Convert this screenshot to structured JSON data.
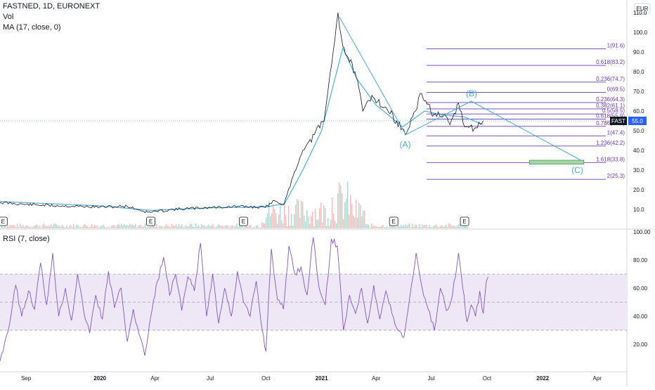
{
  "header": {
    "symbol_line": "FASTNED, 1D, EURONEXT",
    "indicator_vol": "Vol",
    "indicator_ma": "MA (17, close, 0)",
    "currency": "EUR",
    "rsi_label": "RSI (7, close)"
  },
  "price_tag": {
    "ticker": "FAST",
    "value": "55.0"
  },
  "colors": {
    "price_line": "#131722",
    "ma_line": "#4fb0d8",
    "fib_line": "#673ab7",
    "wave_line": "#4fa9d8",
    "rsi_line": "#7e57c2",
    "rsi_band": "#ede7f6",
    "target_box": "#a5d6a7",
    "vol_up": "#8fd1c2",
    "vol_down": "#f4a6a6",
    "price_tag_bg": "#2962ff"
  },
  "chart_data": [
    {
      "type": "line",
      "title": "FASTNED, 1D, EURONEXT",
      "yscale": "linear",
      "ylim": [
        0,
        110
      ],
      "y_ticks": [
        "10.0",
        "20.0",
        "30.0",
        "40.0",
        "50.0",
        "60.0",
        "70.0",
        "80.0",
        "90.0",
        "100.0",
        "110.0"
      ],
      "x_ticks": [
        "Sep",
        "2020",
        "Apr",
        "Jul",
        "Oct",
        "2021",
        "Apr",
        "Jul",
        "Oct",
        "2022",
        "Apr"
      ],
      "series": [
        {
          "role": "price",
          "points": [
            [
              "2019-07-20",
              13.5
            ],
            [
              "2019-09-01",
              12.5
            ],
            [
              "2019-11-01",
              11.8
            ],
            [
              "2020-01-01",
              11.2
            ],
            [
              "2020-02-15",
              11.6
            ],
            [
              "2020-03-20",
              8.5
            ],
            [
              "2020-05-01",
              10.0
            ],
            [
              "2020-07-01",
              11.0
            ],
            [
              "2020-08-15",
              11.5
            ],
            [
              "2020-09-30",
              11.0
            ],
            [
              "2020-10-15",
              14.5
            ],
            [
              "2020-10-31",
              12.5
            ],
            [
              "2020-11-15",
              27.0
            ],
            [
              "2020-12-01",
              40.0
            ],
            [
              "2020-12-20",
              48.0
            ],
            [
              "2021-01-05",
              55.0
            ],
            [
              "2021-01-20",
              90.0
            ],
            [
              "2021-01-28",
              110.0
            ],
            [
              "2021-02-05",
              93.0
            ],
            [
              "2021-02-25",
              80.0
            ],
            [
              "2021-03-10",
              60.0
            ],
            [
              "2021-03-25",
              68.0
            ],
            [
              "2021-04-15",
              62.0
            ],
            [
              "2021-05-05",
              55.0
            ],
            [
              "2021-05-19",
              48.0
            ],
            [
              "2021-06-05",
              60.0
            ],
            [
              "2021-06-15",
              69.0
            ],
            [
              "2021-07-05",
              58.0
            ],
            [
              "2021-07-20",
              57.0
            ],
            [
              "2021-08-01",
              53.0
            ],
            [
              "2021-08-15",
              64.0
            ],
            [
              "2021-08-25",
              52.0
            ],
            [
              "2021-09-10",
              51.0
            ],
            [
              "2021-09-25",
              55.0
            ]
          ]
        },
        {
          "name": "MA (17, close, 0)",
          "role": "ma",
          "points": [
            [
              "2019-07-20",
              14.0
            ],
            [
              "2020-01-01",
              11.8
            ],
            [
              "2020-03-25",
              9.5
            ],
            [
              "2020-07-01",
              10.8
            ],
            [
              "2020-10-01",
              11.2
            ],
            [
              "2020-11-01",
              13.0
            ],
            [
              "2020-12-01",
              30.0
            ],
            [
              "2021-01-01",
              50.0
            ],
            [
              "2021-02-05",
              92.0
            ],
            [
              "2021-03-01",
              76.0
            ],
            [
              "2021-04-01",
              63.0
            ],
            [
              "2021-05-15",
              52.0
            ],
            [
              "2021-06-20",
              60.0
            ],
            [
              "2021-07-20",
              58.0
            ],
            [
              "2021-08-25",
              57.0
            ],
            [
              "2021-09-25",
              53.0
            ]
          ]
        }
      ],
      "fibonacci": [
        {
          "label": "1(91.6)",
          "value": 91.6
        },
        {
          "label": "0.618(83.2)",
          "value": 83.2
        },
        {
          "label": "0.236(74.7)",
          "value": 74.7
        },
        {
          "label": "0(69.5)",
          "value": 69.5
        },
        {
          "label": "0.236(64.3)",
          "value": 64.3
        },
        {
          "label": "0.382(61.1)",
          "value": 61.1
        },
        {
          "label": "0.5(58.5)",
          "value": 58.5
        },
        {
          "label": "0.618(55.9)",
          "value": 55.9
        },
        {
          "label": "0.786(52.2)",
          "value": 52.2
        },
        {
          "label": "1(47.4)",
          "value": 47.4
        },
        {
          "label": "1.236(42.2)",
          "value": 42.2
        },
        {
          "label": "1.618(33.8)",
          "value": 33.8
        },
        {
          "label": "2(25.3)",
          "value": 25.3
        }
      ],
      "waves": [
        {
          "label": "(A)",
          "x": "2021-05-19",
          "y": 48.0
        },
        {
          "label": "(B)",
          "x": "2021-08-25",
          "y": 64.0
        },
        {
          "label": "(C)",
          "x": "2022-03-05",
          "y": 35.0
        }
      ],
      "wave_path": [
        [
          "2021-01-30",
          108.0
        ],
        [
          "2021-05-20",
          48.0
        ],
        [
          "2021-09-05",
          65.0
        ],
        [
          "2022-03-05",
          35.0
        ]
      ],
      "target_zone": {
        "from": "2021-12-10",
        "to": "2022-03-10",
        "low": 33.0,
        "high": 35.0
      },
      "earnings_markers": [
        "E",
        "E",
        "E",
        "E",
        "E"
      ],
      "earnings_dates": [
        "2019-07-25",
        "2020-03-25",
        "2020-08-25",
        "2021-04-30",
        "2021-08-25"
      ],
      "price_marker": 55.0
    },
    {
      "type": "line",
      "title": "RSI (7, close)",
      "ylim": [
        0,
        100
      ],
      "y_ticks": [
        "20.00",
        "40.00",
        "60.00",
        "80.00",
        "100.00"
      ],
      "band": [
        30,
        70
      ],
      "midline": 50,
      "series": [
        {
          "role": "rsi",
          "points": [
            [
              "2019-07-20",
              8
            ],
            [
              "2019-07-28",
              22
            ],
            [
              "2019-08-05",
              35
            ],
            [
              "2019-08-15",
              62
            ],
            [
              "2019-08-25",
              40
            ],
            [
              "2019-09-05",
              58
            ],
            [
              "2019-09-15",
              45
            ],
            [
              "2019-09-25",
              78
            ],
            [
              "2019-10-05",
              48
            ],
            [
              "2019-10-15",
              85
            ],
            [
              "2019-10-25",
              40
            ],
            [
              "2019-11-05",
              60
            ],
            [
              "2019-11-15",
              37
            ],
            [
              "2019-11-25",
              70
            ],
            [
              "2019-12-05",
              44
            ],
            [
              "2019-12-15",
              28
            ],
            [
              "2019-12-25",
              55
            ],
            [
              "2020-01-05",
              38
            ],
            [
              "2020-01-15",
              72
            ],
            [
              "2020-01-25",
              46
            ],
            [
              "2020-02-05",
              60
            ],
            [
              "2020-02-15",
              22
            ],
            [
              "2020-02-25",
              45
            ],
            [
              "2020-03-05",
              28
            ],
            [
              "2020-03-15",
              12
            ],
            [
              "2020-03-25",
              40
            ],
            [
              "2020-04-05",
              65
            ],
            [
              "2020-04-15",
              82
            ],
            [
              "2020-04-25",
              55
            ],
            [
              "2020-05-05",
              70
            ],
            [
              "2020-05-15",
              44
            ],
            [
              "2020-05-25",
              68
            ],
            [
              "2020-06-05",
              58
            ],
            [
              "2020-06-15",
              92
            ],
            [
              "2020-06-25",
              40
            ],
            [
              "2020-07-05",
              70
            ],
            [
              "2020-07-15",
              35
            ],
            [
              "2020-07-25",
              60
            ],
            [
              "2020-08-05",
              40
            ],
            [
              "2020-08-15",
              72
            ],
            [
              "2020-08-25",
              50
            ],
            [
              "2020-09-05",
              40
            ],
            [
              "2020-09-15",
              65
            ],
            [
              "2020-09-25",
              30
            ],
            [
              "2020-10-01",
              15
            ],
            [
              "2020-10-10",
              88
            ],
            [
              "2020-10-20",
              52
            ],
            [
              "2020-10-30",
              45
            ],
            [
              "2020-11-08",
              90
            ],
            [
              "2020-11-18",
              70
            ],
            [
              "2020-11-28",
              75
            ],
            [
              "2020-12-08",
              55
            ],
            [
              "2020-12-18",
              96
            ],
            [
              "2020-12-28",
              60
            ],
            [
              "2021-01-07",
              48
            ],
            [
              "2021-01-17",
              95
            ],
            [
              "2021-01-27",
              90
            ],
            [
              "2021-02-06",
              30
            ],
            [
              "2021-02-16",
              55
            ],
            [
              "2021-02-26",
              42
            ],
            [
              "2021-03-08",
              60
            ],
            [
              "2021-03-18",
              35
            ],
            [
              "2021-03-28",
              62
            ],
            [
              "2021-04-07",
              38
            ],
            [
              "2021-04-17",
              58
            ],
            [
              "2021-04-27",
              42
            ],
            [
              "2021-05-07",
              30
            ],
            [
              "2021-05-17",
              25
            ],
            [
              "2021-05-27",
              55
            ],
            [
              "2021-06-06",
              85
            ],
            [
              "2021-06-16",
              60
            ],
            [
              "2021-06-26",
              45
            ],
            [
              "2021-07-06",
              30
            ],
            [
              "2021-07-16",
              60
            ],
            [
              "2021-07-26",
              44
            ],
            [
              "2021-08-05",
              55
            ],
            [
              "2021-08-15",
              85
            ],
            [
              "2021-08-22",
              60
            ],
            [
              "2021-08-29",
              36
            ],
            [
              "2021-09-05",
              48
            ],
            [
              "2021-09-12",
              40
            ],
            [
              "2021-09-19",
              58
            ],
            [
              "2021-09-25",
              42
            ],
            [
              "2021-09-30",
              65
            ],
            [
              "2021-10-03",
              68
            ]
          ]
        }
      ]
    }
  ]
}
